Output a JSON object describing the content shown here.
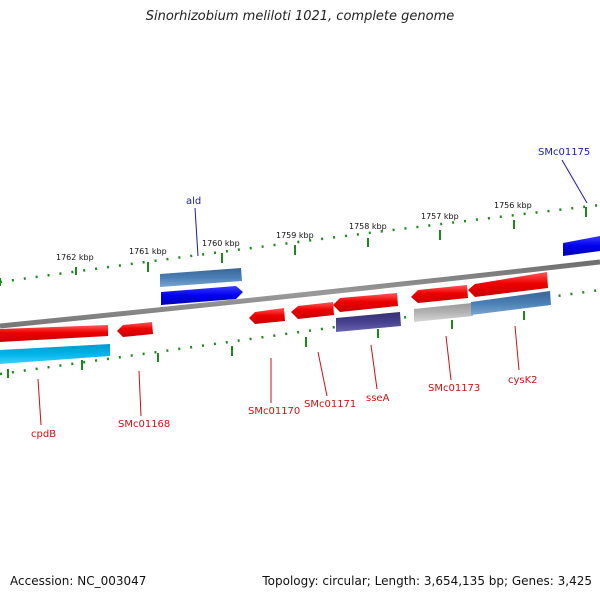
{
  "title": "Sinorhizobium meliloti 1021, complete genome",
  "footer": {
    "accession": "Accession: NC_003047",
    "summary": "Topology: circular; Length: 3,654,135 bp; Genes: 3,425"
  },
  "colors": {
    "forward_gene": "#0000ee",
    "forward_feature": "#4a7fb5",
    "reverse_gene": "#ee0000",
    "reverse_feature_cyan": "#00aadd",
    "reverse_feature_purple": "#3f3a8c",
    "reverse_feature_gray": "#a8a8a8",
    "reverse_feature_steel": "#3d6fa3",
    "backbone": "#808080",
    "ruler": "#1a8a1a",
    "forward_label": "#1a1aaa",
    "reverse_label": "#cc1111"
  },
  "scale": {
    "labels": [
      "1762 kbp",
      "1761 kbp",
      "1760 kbp",
      "1759 kbp",
      "1758 kbp",
      "1757 kbp",
      "1756 kbp"
    ]
  },
  "genes": [
    {
      "label": "SMc01175",
      "strand": "forward"
    },
    {
      "label": "ald",
      "strand": "forward"
    },
    {
      "label": "cpdB",
      "strand": "reverse"
    },
    {
      "label": "SMc01168",
      "strand": "reverse"
    },
    {
      "label": "SMc01170",
      "strand": "reverse"
    },
    {
      "label": "SMc01171",
      "strand": "reverse"
    },
    {
      "label": "sseA",
      "strand": "reverse"
    },
    {
      "label": "SMc01173",
      "strand": "reverse"
    },
    {
      "label": "cysK2",
      "strand": "reverse"
    }
  ]
}
